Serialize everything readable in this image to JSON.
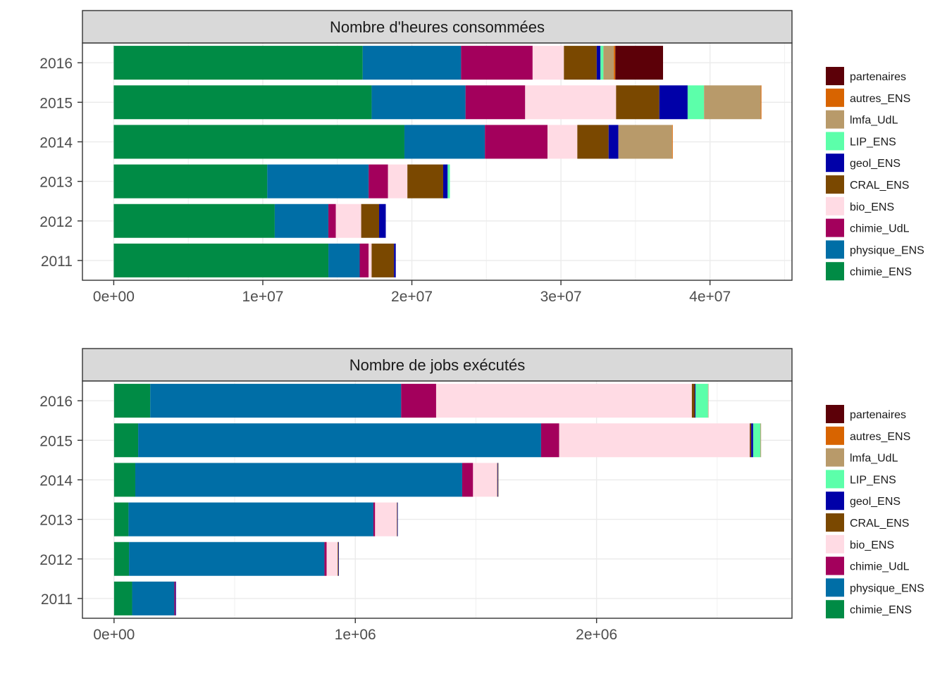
{
  "colors": {
    "chimie_ENS": "#008b45",
    "physique_ENS": "#006ea6",
    "chimie_UdL": "#a3005c",
    "bio_ENS": "#ffdbe4",
    "CRAL_ENS": "#7a4800",
    "geol_ENS": "#0000a8",
    "LIP_ENS": "#5cffaa",
    "lmfa_UdL": "#b89a6a",
    "autres_ENS": "#d86400",
    "partenaires": "#5c0008"
  },
  "chart_data": [
    {
      "type": "bar",
      "orientation": "horizontal",
      "stacked": true,
      "title": "Nombre d'heures consommées",
      "categories": [
        "2011",
        "2012",
        "2013",
        "2014",
        "2015",
        "2016"
      ],
      "xlim": [
        -2100000,
        45500000
      ],
      "xticks": [
        0,
        10000000,
        20000000,
        30000000,
        40000000
      ],
      "xtick_labels": [
        "0e+00",
        "1e+07",
        "2e+07",
        "3e+07",
        "4e+07"
      ],
      "grid": true,
      "legend": "right",
      "legend_entries": [
        "partenaires",
        "autres_ENS",
        "lmfa_UdL",
        "LIP_ENS",
        "geol_ENS",
        "CRAL_ENS",
        "bio_ENS",
        "chimie_UdL",
        "physique_ENS",
        "chimie_ENS"
      ],
      "series": [
        {
          "name": "chimie_ENS",
          "values": [
            14400000,
            10800000,
            10300000,
            19500000,
            17300000,
            16700000
          ]
        },
        {
          "name": "physique_ENS",
          "values": [
            2100000,
            3600000,
            6800000,
            5400000,
            6300000,
            6600000
          ]
        },
        {
          "name": "chimie_UdL",
          "values": [
            600000,
            500000,
            1300000,
            4200000,
            4000000,
            4800000
          ]
        },
        {
          "name": "bio_ENS",
          "values": [
            200000,
            1700000,
            1300000,
            2000000,
            6100000,
            2100000
          ]
        },
        {
          "name": "CRAL_ENS",
          "values": [
            1500000,
            1200000,
            2400000,
            2100000,
            2900000,
            2200000
          ]
        },
        {
          "name": "geol_ENS",
          "values": [
            120000,
            450000,
            300000,
            650000,
            1900000,
            250000
          ]
        },
        {
          "name": "LIP_ENS",
          "values": [
            0,
            0,
            150000,
            0,
            1100000,
            200000
          ]
        },
        {
          "name": "lmfa_UdL",
          "values": [
            0,
            0,
            0,
            3600000,
            3800000,
            700000
          ]
        },
        {
          "name": "autres_ENS",
          "values": [
            0,
            0,
            0,
            50000,
            50000,
            100000
          ]
        },
        {
          "name": "partenaires",
          "values": [
            0,
            0,
            0,
            0,
            0,
            3200000
          ]
        }
      ]
    },
    {
      "type": "bar",
      "orientation": "horizontal",
      "stacked": true,
      "title": "Nombre de jobs exécutés",
      "categories": [
        "2011",
        "2012",
        "2013",
        "2014",
        "2015",
        "2016"
      ],
      "xlim": [
        -131000,
        2810000
      ],
      "xticks": [
        0,
        1000000,
        2000000
      ],
      "xtick_labels": [
        "0e+00",
        "1e+06",
        "2e+06"
      ],
      "grid": true,
      "legend": "right",
      "legend_entries": [
        "partenaires",
        "autres_ENS",
        "lmfa_UdL",
        "LIP_ENS",
        "geol_ENS",
        "CRAL_ENS",
        "bio_ENS",
        "chimie_UdL",
        "physique_ENS",
        "chimie_ENS"
      ],
      "series": [
        {
          "name": "chimie_ENS",
          "values": [
            75000,
            62000,
            60000,
            88000,
            100000,
            150000
          ]
        },
        {
          "name": "physique_ENS",
          "values": [
            175000,
            810000,
            1015000,
            1355000,
            1670000,
            1040000
          ]
        },
        {
          "name": "chimie_UdL",
          "values": [
            5000,
            9000,
            7000,
            45000,
            75000,
            145000
          ]
        },
        {
          "name": "bio_ENS",
          "values": [
            0,
            46000,
            90000,
            100000,
            790000,
            1060000
          ]
        },
        {
          "name": "CRAL_ENS",
          "values": [
            0,
            3000,
            2000,
            2000,
            6000,
            12000
          ]
        },
        {
          "name": "geol_ENS",
          "values": [
            2000,
            2000,
            2000,
            2000,
            8000,
            3000
          ]
        },
        {
          "name": "LIP_ENS",
          "values": [
            0,
            0,
            0,
            0,
            30000,
            52000
          ]
        },
        {
          "name": "lmfa_UdL",
          "values": [
            0,
            0,
            0,
            2000,
            3000,
            2000
          ]
        },
        {
          "name": "autres_ENS",
          "values": [
            0,
            0,
            0,
            0,
            0,
            0
          ]
        },
        {
          "name": "partenaires",
          "values": [
            0,
            0,
            0,
            0,
            0,
            0
          ]
        }
      ]
    }
  ]
}
